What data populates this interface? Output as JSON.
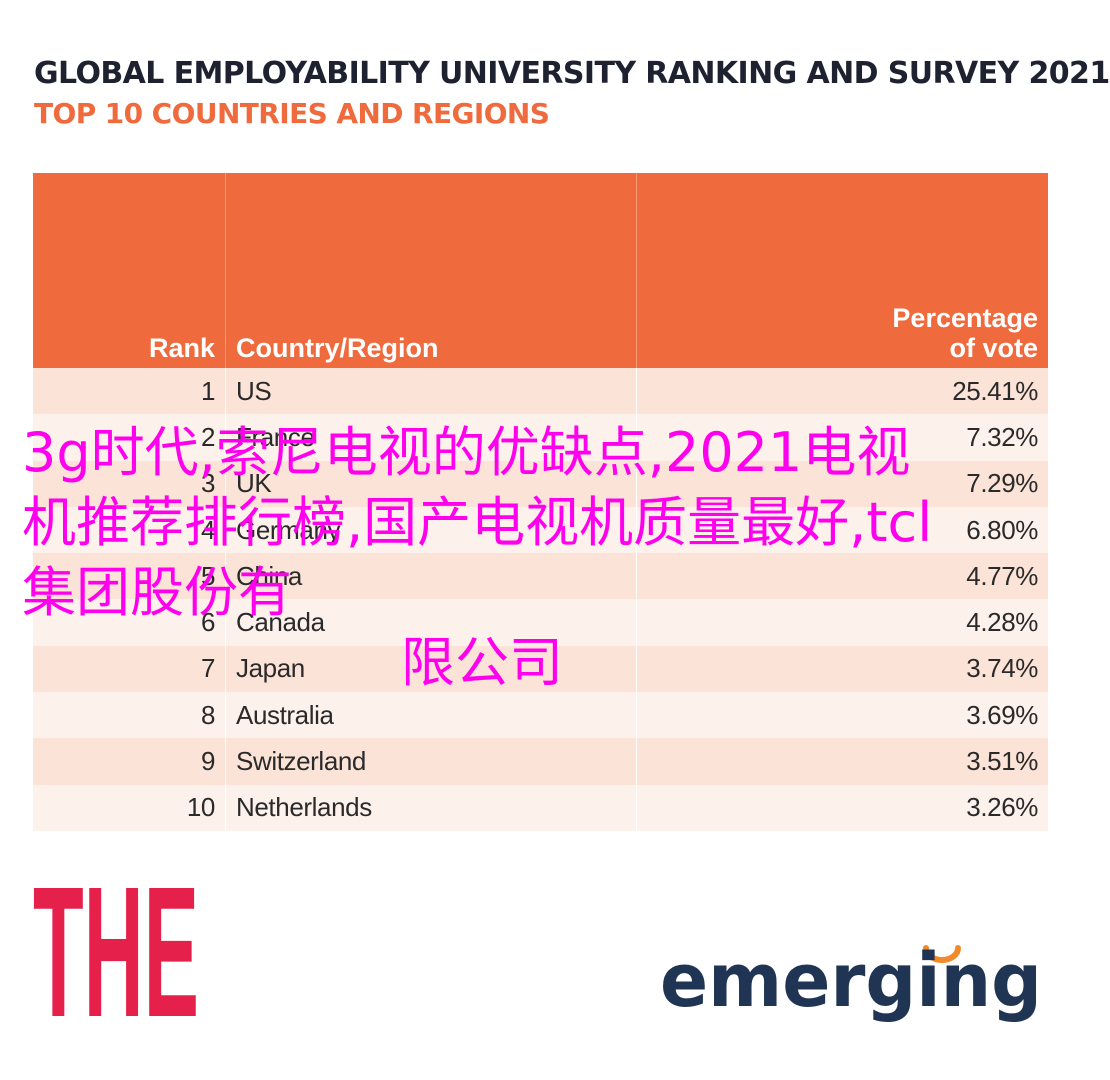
{
  "chart_data": {
    "type": "table",
    "title": "GLOBAL EMPLOYABILITY UNIVERSITY RANKING AND SURVEY 2021",
    "subtitle": "TOP 10 COUNTRIES AND REGIONS",
    "columns": [
      "Rank",
      "Country/Region",
      "Percentage\nof vote"
    ],
    "rows": [
      {
        "rank": "1",
        "country": "US",
        "pct": "25.41%"
      },
      {
        "rank": "2",
        "country": "France",
        "pct": "7.32%"
      },
      {
        "rank": "3",
        "country": "UK",
        "pct": "7.29%"
      },
      {
        "rank": "4",
        "country": "Germany",
        "pct": "6.80%"
      },
      {
        "rank": "5",
        "country": "China",
        "pct": "4.77%"
      },
      {
        "rank": "6",
        "country": "Canada",
        "pct": "4.28%"
      },
      {
        "rank": "7",
        "country": "Japan",
        "pct": "3.74%"
      },
      {
        "rank": "8",
        "country": "Australia",
        "pct": "3.69%"
      },
      {
        "rank": "9",
        "country": "Switzerland",
        "pct": "3.51%"
      },
      {
        "rank": "10",
        "country": "Netherlands",
        "pct": "3.26%"
      }
    ]
  },
  "overlay": {
    "text": "3g时代,索尼电视的优缺点,2021电视机推荐排行榜,国产电视机质量最好,tcl集团股份有",
    "tail": "限公司"
  },
  "logos": {
    "the": "THE",
    "emerging": "emerging"
  },
  "colors": {
    "accent": "#ef6a3c",
    "title": "#1e2230",
    "row_dark": "#fbe3d8",
    "row_light": "#fdf1ec",
    "overlay": "#ff00ee",
    "logo_red": "#e4204b",
    "logo_navy": "#203554",
    "logo_orange": "#f28a2a"
  }
}
